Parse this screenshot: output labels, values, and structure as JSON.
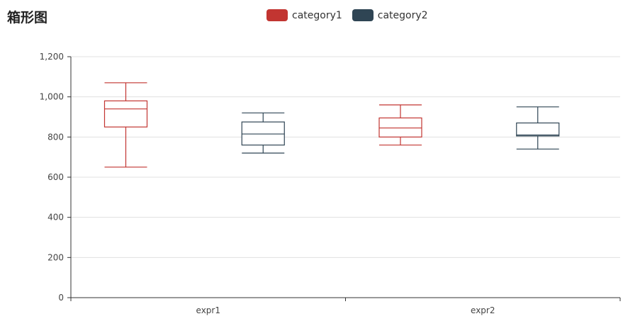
{
  "title": "箱形图",
  "colors": {
    "category1": "#c23531",
    "category2": "#2f4554"
  },
  "chart_data": {
    "type": "boxplot",
    "categories": [
      "expr1",
      "expr2"
    ],
    "ylim": [
      0,
      1200
    ],
    "yticks": [
      0,
      200,
      400,
      600,
      800,
      "1,000",
      "1,200"
    ],
    "ytick_values": [
      0,
      200,
      400,
      600,
      800,
      1000,
      1200
    ],
    "grid": true,
    "legend_position": "top-center",
    "series": [
      {
        "name": "category1",
        "color": "#c23531",
        "boxes": [
          {
            "min": 650,
            "q1": 850,
            "median": 940,
            "q3": 980,
            "max": 1070
          },
          {
            "min": 760,
            "q1": 800,
            "median": 845,
            "q3": 895,
            "max": 960
          }
        ]
      },
      {
        "name": "category2",
        "color": "#2f4554",
        "boxes": [
          {
            "min": 720,
            "q1": 760,
            "median": 815,
            "q3": 875,
            "max": 920
          },
          {
            "min": 740,
            "q1": 805,
            "median": 810,
            "q3": 870,
            "max": 950
          }
        ]
      }
    ]
  }
}
